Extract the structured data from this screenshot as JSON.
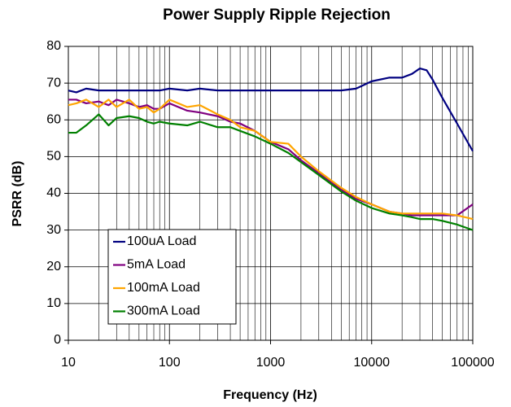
{
  "chart_data": {
    "type": "line",
    "title": "Power Supply Ripple Rejection",
    "x_label": "Frequency (Hz)",
    "y_label": "PSRR (dB)",
    "x_scale": "log",
    "grid": true,
    "minor_grid": true,
    "legend": "lower left",
    "xlim": [
      10,
      100000
    ],
    "xticks": [
      10,
      100,
      1000,
      10000,
      100000
    ],
    "ylim": [
      0,
      80
    ],
    "yticks": [
      0,
      10,
      20,
      30,
      40,
      50,
      60,
      70,
      80
    ],
    "x": [
      10,
      12,
      15,
      20,
      25,
      30,
      40,
      50,
      60,
      70,
      80,
      100,
      150,
      200,
      300,
      400,
      500,
      700,
      1000,
      1500,
      2000,
      3000,
      5000,
      7000,
      10000,
      15000,
      20000,
      25000,
      30000,
      35000,
      40000,
      50000,
      70000,
      100000
    ],
    "series": [
      {
        "name": "100uA Load",
        "color": "#000080",
        "values": [
          68,
          67.5,
          68.5,
          68,
          68,
          68,
          68,
          68,
          68,
          68,
          68,
          68.5,
          68,
          68.5,
          68,
          68,
          68,
          68,
          68,
          68,
          68,
          68,
          68,
          68.5,
          70.5,
          71.5,
          71.5,
          72.5,
          74,
          73.5,
          71,
          66,
          59,
          51.5
        ]
      },
      {
        "name": "5mA Load",
        "color": "#800080",
        "values": [
          65.5,
          65.5,
          64.5,
          65,
          64,
          65.5,
          64.5,
          63.5,
          64,
          63,
          63,
          64.5,
          62.5,
          62,
          61,
          59.5,
          59,
          57,
          54,
          52,
          49,
          45.5,
          41,
          38.5,
          37,
          35,
          34.5,
          34,
          34,
          34,
          34,
          34,
          34,
          37
        ]
      },
      {
        "name": "100mA Load",
        "color": "#ffa500",
        "values": [
          64,
          64.5,
          65.5,
          63.5,
          65.5,
          63.5,
          65.5,
          63,
          63.5,
          62,
          63,
          65.5,
          63.5,
          64,
          61.5,
          60,
          58,
          57,
          54,
          53.5,
          50,
          46,
          41.5,
          39,
          37,
          35,
          34.5,
          34.5,
          34.5,
          34.5,
          34.5,
          34.5,
          34,
          33
        ]
      },
      {
        "name": "300mA Load",
        "color": "#008000",
        "values": [
          56.5,
          56.5,
          58.5,
          61.5,
          58.5,
          60.5,
          61,
          60.5,
          59.5,
          59,
          59.5,
          59,
          58.5,
          59.5,
          58,
          58,
          57,
          55.5,
          53.5,
          51,
          48.5,
          45,
          40.5,
          38,
          36,
          34.5,
          34,
          33.5,
          33,
          33,
          33,
          32.5,
          31.5,
          30
        ]
      }
    ]
  }
}
